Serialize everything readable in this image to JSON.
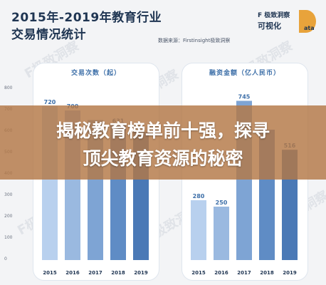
{
  "header": {
    "title_line1": "2015年-2019年教育行业",
    "title_line2": "交易情况统计",
    "logo_top": "F 极致洞察",
    "logo_mid": "可视化",
    "logo_letters": "ata",
    "source": "数据来源：Firstinsight极致洞察"
  },
  "overlay": {
    "line1": "揭秘教育榜单前十强，探寻",
    "line2": "顶尖教育资源的秘密"
  },
  "watermark": "F极致洞察",
  "chart_data": [
    {
      "type": "bar",
      "title": "交易次数（起）",
      "categories": [
        "2015",
        "2016",
        "2017",
        "2018",
        "2019"
      ],
      "values": [
        720,
        700,
        655,
        631,
        600
      ],
      "value_labels": [
        "720",
        "700",
        "",
        "631",
        ""
      ],
      "ylim": [
        0,
        800
      ],
      "yticks": [
        0,
        100,
        200,
        300,
        400,
        500,
        600,
        700,
        800
      ],
      "grid": false,
      "colors": [
        "#b8d0ee",
        "#9ab9e0",
        "#7ea4d4",
        "#5f8cc5",
        "#4a79b6"
      ]
    },
    {
      "type": "bar",
      "title": "融资金额（亿人民币）",
      "categories": [
        "2015",
        "2016",
        "2017",
        "2018",
        "2019"
      ],
      "values": [
        280,
        250,
        745,
        610,
        516
      ],
      "value_labels": [
        "280",
        "250",
        "745",
        "",
        "516"
      ],
      "ylim": [
        0,
        800
      ],
      "grid": false,
      "colors": [
        "#b8d0ee",
        "#9ab9e0",
        "#7ea4d4",
        "#5f8cc5",
        "#4a79b6"
      ]
    }
  ]
}
